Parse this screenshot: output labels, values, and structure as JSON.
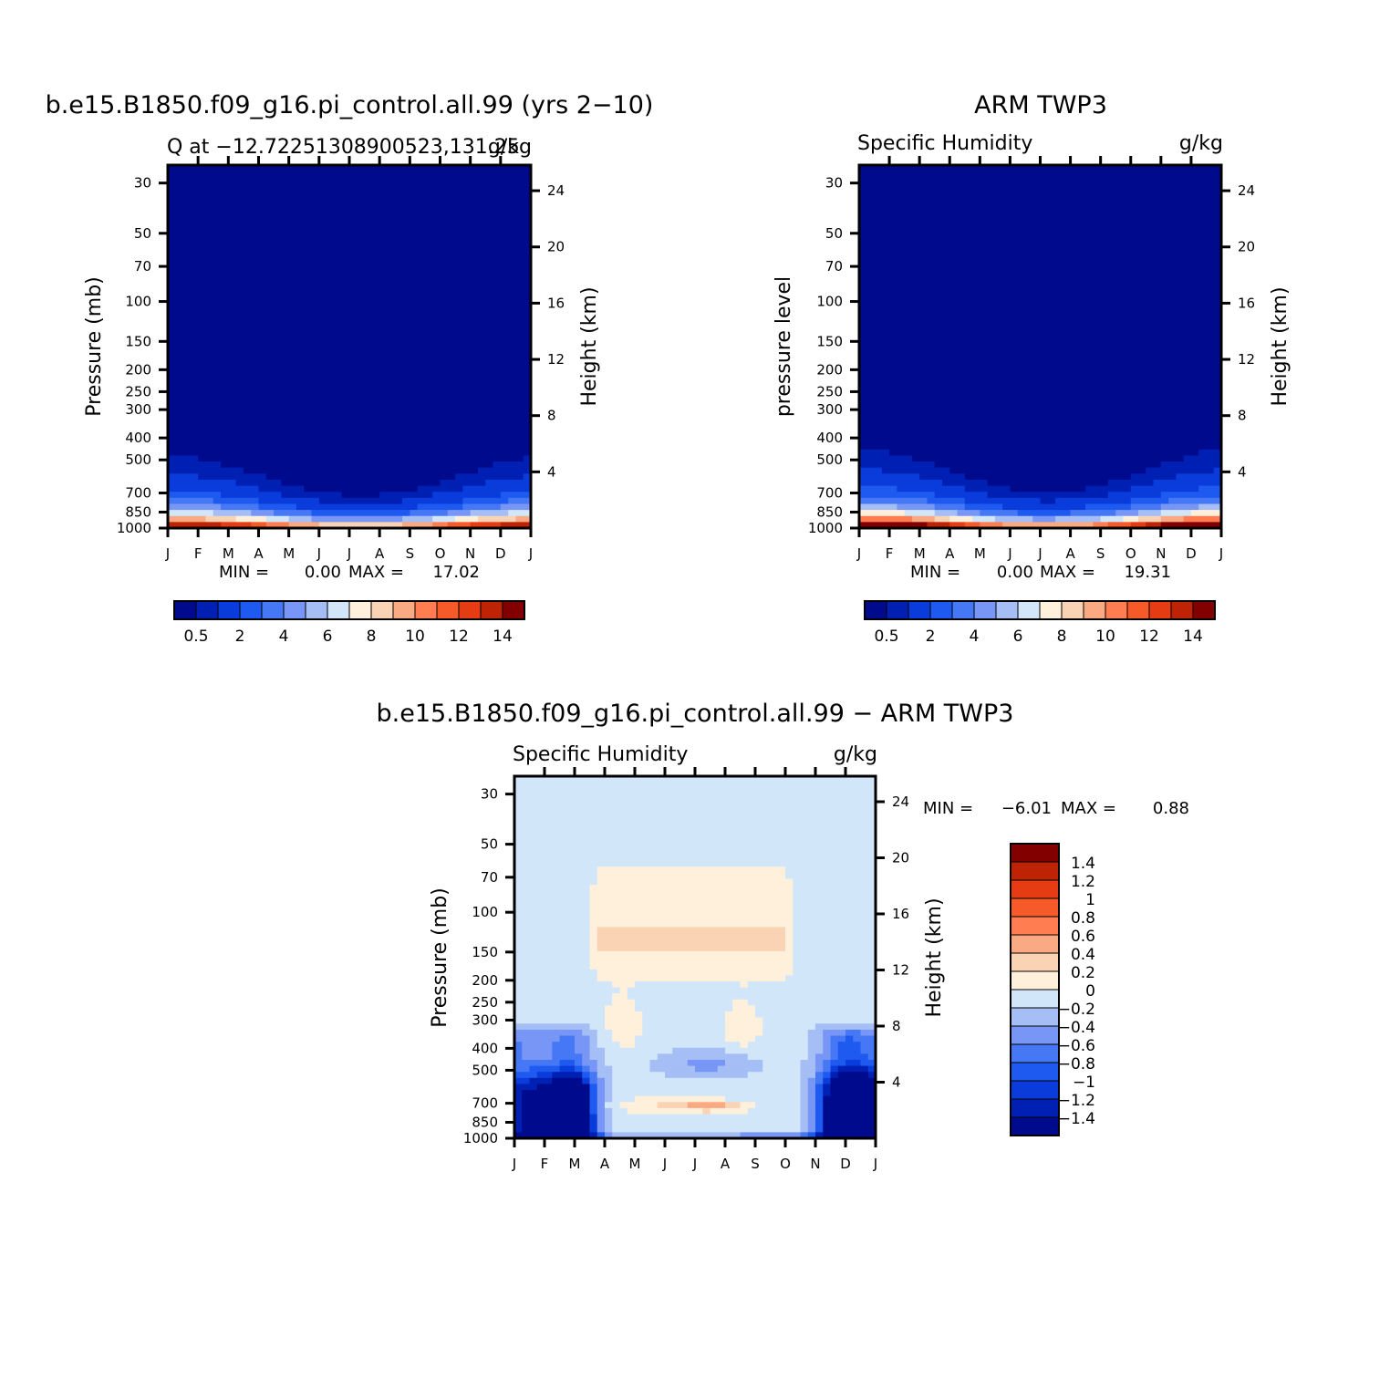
{
  "chart_data": [
    {
      "type": "heatmap",
      "title": "b.e15.B1850.f09_g16.pi_control.all.99 (yrs 2−10)",
      "subtitle_left": "Q at −12.72251308900523,131.25",
      "subtitle_right": "g/kg",
      "ylabel": "Pressure (mb)",
      "ylabel_right": "Height (km)",
      "xticks": [
        "J",
        "F",
        "M",
        "A",
        "M",
        "J",
        "J",
        "A",
        "S",
        "O",
        "N",
        "D",
        "J"
      ],
      "yticks": [
        "30",
        "50",
        "70",
        "100",
        "150",
        "200",
        "250",
        "300",
        "400",
        "500",
        "700",
        "850",
        "1000"
      ],
      "yticks_right": [
        "24",
        "20",
        "16",
        "12",
        "8",
        "4"
      ],
      "ylim": [
        1000,
        25
      ],
      "min_label": "MIN =",
      "min_value": "0.00",
      "max_label": "MAX =",
      "max_value": "17.02",
      "min": 0.0,
      "max": 17.02,
      "colorbar_labels": [
        "0.5",
        "2",
        "4",
        "6",
        "8",
        "10",
        "12",
        "14"
      ],
      "field": "model"
    },
    {
      "type": "heatmap",
      "title": "ARM TWP3",
      "subtitle_left": "Specific Humidity",
      "subtitle_right": "g/kg",
      "ylabel": "pressure level",
      "ylabel_right": "Height (km)",
      "xticks": [
        "J",
        "F",
        "M",
        "A",
        "M",
        "J",
        "J",
        "A",
        "S",
        "O",
        "N",
        "D",
        "J"
      ],
      "yticks": [
        "30",
        "50",
        "70",
        "100",
        "150",
        "200",
        "250",
        "300",
        "400",
        "500",
        "700",
        "850",
        "1000"
      ],
      "yticks_right": [
        "24",
        "20",
        "16",
        "12",
        "8",
        "4"
      ],
      "ylim": [
        1000,
        25
      ],
      "min_label": "MIN =",
      "min_value": "0.00",
      "max_label": "MAX =",
      "max_value": "19.31",
      "min": 0.0,
      "max": 19.31,
      "colorbar_labels": [
        "0.5",
        "2",
        "4",
        "6",
        "8",
        "10",
        "12",
        "14"
      ],
      "field": "obs"
    },
    {
      "type": "heatmap",
      "title": "b.e15.B1850.f09_g16.pi_control.all.99 − ARM TWP3",
      "subtitle_left": "Specific Humidity",
      "subtitle_right": "g/kg",
      "ylabel": "Pressure (mb)",
      "ylabel_right": "Height (km)",
      "xticks": [
        "J",
        "F",
        "M",
        "A",
        "M",
        "J",
        "J",
        "A",
        "S",
        "O",
        "N",
        "D",
        "J"
      ],
      "yticks": [
        "30",
        "50",
        "70",
        "100",
        "150",
        "200",
        "250",
        "300",
        "400",
        "500",
        "700",
        "850",
        "1000"
      ],
      "yticks_right": [
        "24",
        "20",
        "16",
        "12",
        "8",
        "4"
      ],
      "ylim": [
        1000,
        25
      ],
      "min_label": "MIN =",
      "min_value": "−6.01",
      "max_label": "MAX =",
      "max_value": "0.88",
      "min": -6.01,
      "max": 0.88,
      "colorbar_labels": [
        "1.4",
        "1.2",
        "1",
        "0.8",
        "0.6",
        "0.4",
        "0.2",
        "0",
        "−0.2",
        "−0.4",
        "−0.6",
        "−0.8",
        "−1",
        "−1.2",
        "−1.4"
      ],
      "field": "diff"
    }
  ],
  "colors": {
    "abs_levels": [
      "#000a8c",
      "#0020b4",
      "#0a3cdc",
      "#1e5af0",
      "#4678f5",
      "#7896f5",
      "#a5bef5",
      "#d2e6fa",
      "#fff0dc",
      "#fad2b4",
      "#faaa82",
      "#ff7d50",
      "#f55a28",
      "#e63c14",
      "#be2305",
      "#820000"
    ],
    "diff_levels": [
      "#820000",
      "#be2305",
      "#e63c14",
      "#f55a28",
      "#ff7d50",
      "#faaa82",
      "#fad2b4",
      "#fff0dc",
      "#d2e6fa",
      "#a5bef5",
      "#7896f5",
      "#4678f5",
      "#1e5af0",
      "#0a3cdc",
      "#0020b4",
      "#000a8c"
    ]
  }
}
